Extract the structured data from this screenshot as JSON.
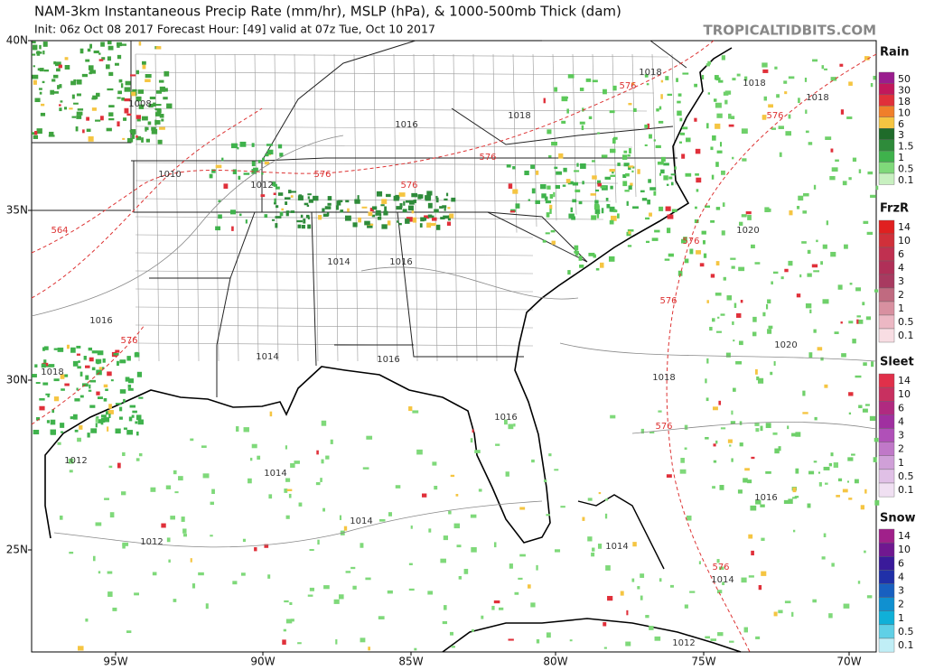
{
  "header": {
    "title": "NAM-3km Instantaneous Precip Rate (mm/hr), MSLP (hPa), & 1000-500mb Thick (dam)",
    "subtitle": "Init: 06z Oct 08 2017   Forecast Hour: [49]   valid at 07z Tue, Oct 10 2017",
    "site": "TROPICALTIDBITS.COM"
  },
  "map": {
    "lat_labels": [
      "40N",
      "35N",
      "30N",
      "25N"
    ],
    "lon_labels": [
      "95W",
      "90W",
      "85W",
      "80W",
      "75W",
      "70W"
    ],
    "contour_labels": [
      "1008",
      "1010",
      "1012",
      "1016",
      "1016",
      "1014",
      "1014",
      "1016",
      "1016",
      "1018",
      "1018",
      "1018",
      "1018",
      "1016",
      "1020",
      "1020",
      "1018",
      "1012",
      "1014",
      "1014",
      "1012",
      "1014",
      "1016",
      "1014",
      "1012",
      "1018",
      "564",
      "576",
      "576",
      "576",
      "576",
      "576",
      "576",
      "576",
      "576",
      "576",
      "576"
    ]
  },
  "legends": [
    {
      "title": "Rain",
      "labels": [
        "50",
        "30",
        "18",
        "10",
        "6",
        "3",
        "1.5",
        "1",
        "0.5",
        "0.1"
      ],
      "colors": [
        "#9a1d8e",
        "#c2185b",
        "#e0303a",
        "#f07f2a",
        "#f5c542",
        "#1f6b2a",
        "#2e8b3a",
        "#3fb24c",
        "#7fd97a",
        "#c8f0c0"
      ]
    },
    {
      "title": "FrzR",
      "labels": [
        "14",
        "10",
        "6",
        "4",
        "3",
        "2",
        "1",
        "0.5",
        "0.1"
      ],
      "colors": [
        "#e02020",
        "#d0303a",
        "#c03050",
        "#b03058",
        "#a83a60",
        "#c06a80",
        "#d890a0",
        "#ecb8c4",
        "#f8dde3"
      ]
    },
    {
      "title": "Sleet",
      "labels": [
        "14",
        "10",
        "6",
        "4",
        "3",
        "2",
        "1",
        "0.5",
        "0.1"
      ],
      "colors": [
        "#e0304a",
        "#c83060",
        "#b02a80",
        "#a030a0",
        "#b050b8",
        "#c078c8",
        "#d0a0d8",
        "#e0c0e6",
        "#f0e0f2"
      ]
    },
    {
      "title": "Snow",
      "labels": [
        "14",
        "10",
        "6",
        "4",
        "3",
        "2",
        "1",
        "0.5",
        "0.1"
      ],
      "colors": [
        "#a0208a",
        "#701890",
        "#3a1a9a",
        "#2030a8",
        "#1860c0",
        "#1090d0",
        "#10b0d8",
        "#60d0e6",
        "#c0eef6"
      ]
    }
  ]
}
